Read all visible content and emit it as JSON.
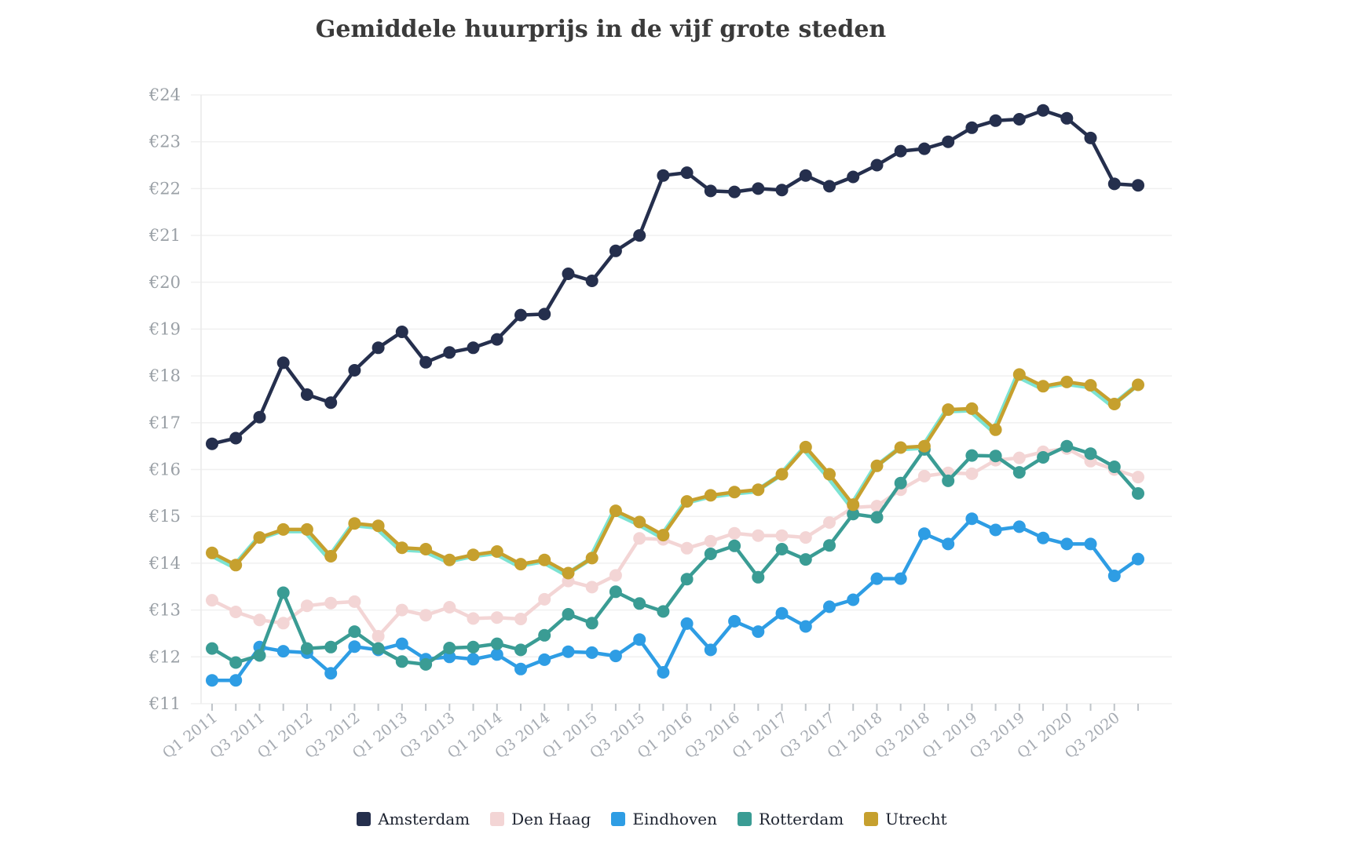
{
  "title": "Gemiddele huurprijs in de vijf grote steden",
  "colors": {
    "background": "#ffffff",
    "grid": "#f0f0f0",
    "axis_line": "#e9e9e9",
    "tick": "#bfc4c9",
    "y_label": "#9aa0a6",
    "x_label": "#a6abb2",
    "title": "#3a3a3a",
    "legend_text": "#1d2330"
  },
  "chart_data": {
    "type": "line",
    "title": "Gemiddele huurprijs in de vijf grote steden",
    "y_tick_prefix": "€",
    "ylim": [
      11,
      24
    ],
    "y_tick_step": 1,
    "grid": "horizontal",
    "legend_position": "bottom",
    "x": [
      "Q1 2011",
      "Q2 2011",
      "Q3 2011",
      "Q4 2011",
      "Q1 2012",
      "Q2 2012",
      "Q3 2012",
      "Q4 2012",
      "Q1 2013",
      "Q2 2013",
      "Q3 2013",
      "Q4 2013",
      "Q1 2014",
      "Q2 2014",
      "Q3 2014",
      "Q4 2014",
      "Q1 2015",
      "Q2 2015",
      "Q3 2015",
      "Q4 2015",
      "Q1 2016",
      "Q2 2016",
      "Q3 2016",
      "Q4 2016",
      "Q1 2017",
      "Q2 2017",
      "Q3 2017",
      "Q4 2017",
      "Q1 2018",
      "Q2 2018",
      "Q3 2018",
      "Q4 2018",
      "Q1 2019",
      "Q2 2019",
      "Q3 2019",
      "Q4 2019",
      "Q1 2020",
      "Q2 2020",
      "Q3 2020",
      "Q4 2020"
    ],
    "x_tick_labels": [
      "Q1 2011",
      "Q3 2011",
      "Q1 2012",
      "Q3 2012",
      "Q1 2013",
      "Q3 2013",
      "Q1 2014",
      "Q3 2014",
      "Q1 2015",
      "Q3 2015",
      "Q1 2016",
      "Q3 2016",
      "Q1 2017",
      "Q3 2017",
      "Q1 2018",
      "Q3 2018",
      "Q1 2019",
      "Q3 2019",
      "Q1 2020",
      "Q3 2020"
    ],
    "series": [
      {
        "name": "Amsterdam",
        "color": "#252f4d",
        "values": [
          16.55,
          16.67,
          17.12,
          18.28,
          17.6,
          17.43,
          18.12,
          18.6,
          18.94,
          18.29,
          18.5,
          18.6,
          18.78,
          19.3,
          19.32,
          20.18,
          20.03,
          20.67,
          21.0,
          22.28,
          22.34,
          21.95,
          21.93,
          22.0,
          21.97,
          22.28,
          22.05,
          22.25,
          22.5,
          22.8,
          22.85,
          23.0,
          23.3,
          23.45,
          23.48,
          23.67,
          23.5,
          23.08,
          22.1,
          22.07
        ]
      },
      {
        "name": "Den Haag",
        "color": "#f3d5d5",
        "values": [
          13.21,
          12.96,
          12.79,
          12.72,
          13.09,
          13.15,
          13.18,
          12.44,
          13.0,
          12.89,
          13.06,
          12.82,
          12.84,
          12.81,
          13.23,
          13.62,
          13.49,
          13.74,
          14.53,
          14.51,
          14.32,
          14.47,
          14.64,
          14.59,
          14.59,
          14.55,
          14.87,
          15.19,
          15.22,
          15.57,
          15.86,
          15.93,
          15.91,
          16.2,
          16.25,
          16.38,
          16.45,
          16.18,
          16.0,
          15.84
        ]
      },
      {
        "name": "Eindhoven",
        "color": "#2e9de4",
        "values": [
          11.5,
          11.5,
          12.21,
          12.12,
          12.09,
          11.65,
          12.22,
          12.15,
          12.28,
          11.95,
          12.0,
          11.95,
          12.05,
          11.74,
          11.94,
          12.11,
          12.09,
          12.02,
          12.37,
          11.67,
          12.71,
          12.15,
          12.76,
          12.54,
          12.93,
          12.65,
          13.07,
          13.22,
          13.67,
          13.67,
          14.63,
          14.41,
          14.95,
          14.71,
          14.78,
          14.54,
          14.41,
          14.41,
          13.73,
          14.09
        ]
      },
      {
        "name": "Rotterdam",
        "color": "#3a9c94",
        "values": [
          12.18,
          11.88,
          12.03,
          13.37,
          12.18,
          12.21,
          12.54,
          12.18,
          11.9,
          11.84,
          12.19,
          12.21,
          12.28,
          12.15,
          12.46,
          12.91,
          12.72,
          13.39,
          13.14,
          12.97,
          13.66,
          14.2,
          14.37,
          13.7,
          14.3,
          14.08,
          14.38,
          15.05,
          14.98,
          15.71,
          16.43,
          15.76,
          16.3,
          16.29,
          15.94,
          16.26,
          16.5,
          16.34,
          16.06,
          15.49
        ]
      },
      {
        "name": "Utrecht",
        "color": "#c6a02e",
        "shadow_color": "#7ce3d3",
        "values": [
          14.22,
          13.96,
          14.55,
          14.72,
          14.72,
          14.15,
          14.85,
          14.8,
          14.33,
          14.3,
          14.07,
          14.18,
          14.25,
          13.98,
          14.07,
          13.79,
          14.11,
          15.12,
          14.88,
          14.6,
          15.32,
          15.45,
          15.52,
          15.57,
          15.9,
          16.48,
          15.9,
          15.25,
          16.08,
          16.47,
          16.5,
          17.28,
          17.3,
          16.85,
          18.03,
          17.78,
          17.87,
          17.8,
          17.4,
          17.81
        ]
      }
    ]
  }
}
